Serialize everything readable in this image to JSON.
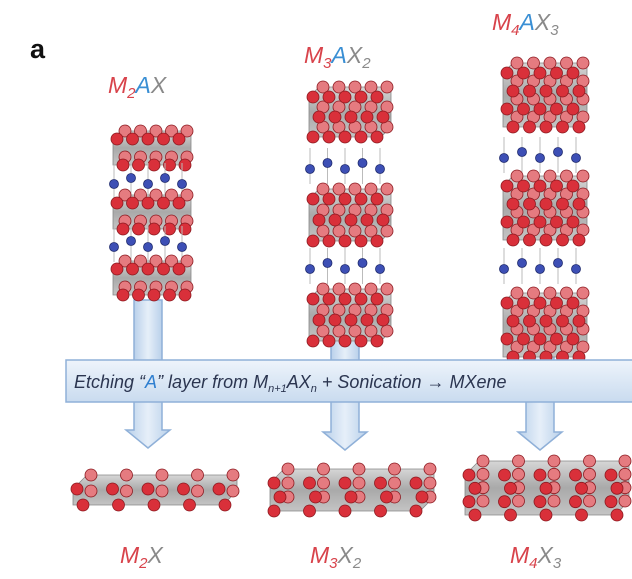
{
  "panel_label": "a",
  "top_labels": [
    [
      "M",
      "2",
      "A",
      "X"
    ],
    [
      "M",
      "3",
      "A",
      "X",
      "2"
    ],
    [
      "M",
      "4",
      "A",
      "X",
      "3"
    ]
  ],
  "banner": [
    "Etching “",
    "A",
    "” layer from M",
    "n+1",
    "AX",
    "n",
    " + Sonication → MXene"
  ],
  "bottom_labels": [
    [
      "M",
      "2",
      "X"
    ],
    [
      "M",
      "3",
      "X",
      "2"
    ],
    [
      "M",
      "4",
      "X",
      "3"
    ]
  ]
}
